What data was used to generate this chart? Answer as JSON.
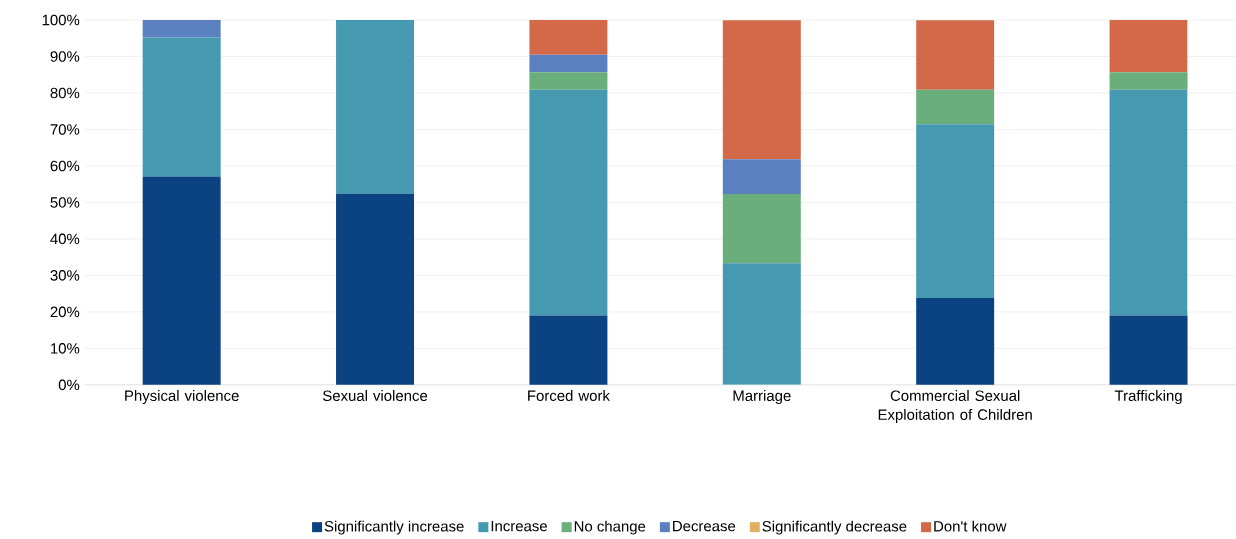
{
  "chart_data": {
    "type": "bar",
    "stacked": true,
    "categories": [
      "Physical violence",
      "Sexual violence",
      "Forced work",
      "Marriage",
      "Commercial Sexual Exploitation of Children",
      "Trafficking"
    ],
    "series": [
      {
        "name": "Significantly increase",
        "color": "#0b4282",
        "values": [
          57.1,
          52.4,
          19.0,
          0,
          23.8,
          19.0
        ]
      },
      {
        "name": "Increase",
        "color": "#4599b0",
        "values": [
          38.1,
          47.6,
          61.9,
          33.3,
          47.6,
          61.9
        ]
      },
      {
        "name": "No change",
        "color": "#6aae7c",
        "values": [
          0,
          0,
          4.8,
          19.0,
          9.5,
          4.8
        ]
      },
      {
        "name": "Decrease",
        "color": "#5b80c0",
        "values": [
          4.8,
          0,
          4.8,
          9.5,
          0,
          0
        ]
      },
      {
        "name": "Significantly decrease",
        "color": "#e0b060",
        "values": [
          0,
          0,
          0,
          0,
          0,
          0
        ]
      },
      {
        "name": "Don't know",
        "color": "#d4694a",
        "values": [
          0,
          0,
          9.5,
          38.1,
          19.0,
          14.3
        ]
      }
    ],
    "ylim": [
      0,
      100
    ],
    "yticks": [
      {
        "value": 0,
        "label": "0%"
      },
      {
        "value": 10,
        "label": "10%"
      },
      {
        "value": 20,
        "label": "20%"
      },
      {
        "value": 30,
        "label": "30%"
      },
      {
        "value": 40,
        "label": "40%"
      },
      {
        "value": 50,
        "label": "50%"
      },
      {
        "value": 60,
        "label": "60%"
      },
      {
        "value": 70,
        "label": "70%"
      },
      {
        "value": 80,
        "label": "80%"
      },
      {
        "value": 90,
        "label": "90%"
      },
      {
        "value": 100,
        "label": "100%"
      }
    ],
    "grid": "y",
    "legend": "bottom"
  }
}
